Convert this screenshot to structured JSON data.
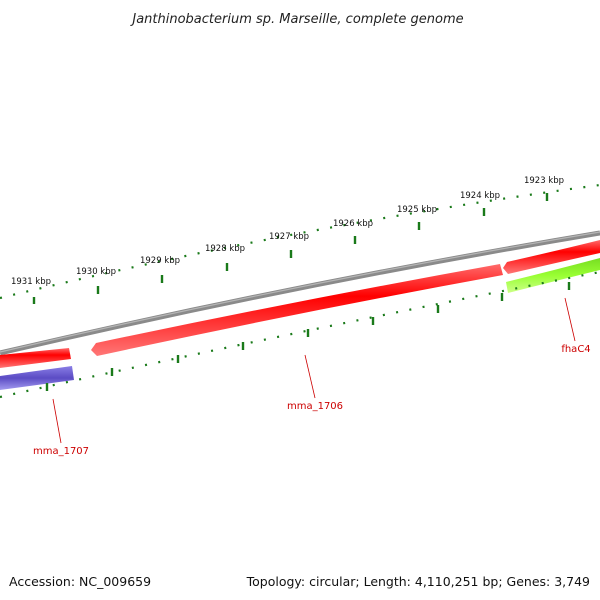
{
  "title": "Janthinobacterium sp. Marseille, complete genome",
  "footer": {
    "accession": "Accession: NC_009659",
    "summary": "Topology: circular; Length: 4,110,251 bp; Genes: 3,749"
  },
  "scale_labels": [
    "1923 kbp",
    "1924 kbp",
    "1925 kbp",
    "1926 kbp",
    "1927 kbp",
    "1928 kbp",
    "1929 kbp",
    "1930 kbp",
    "1931 kbp"
  ],
  "genes": [
    {
      "label": "mma_1707",
      "color": "#6a5acd"
    },
    {
      "label": "mma_1706",
      "color": "#ff0000"
    },
    {
      "label": "fhaC4",
      "color": "#99ff33"
    }
  ],
  "colors": {
    "backbone": "#808080",
    "cds": "#ff0000",
    "tick": "#1a7a1a",
    "gene_label": "#cc0000"
  }
}
